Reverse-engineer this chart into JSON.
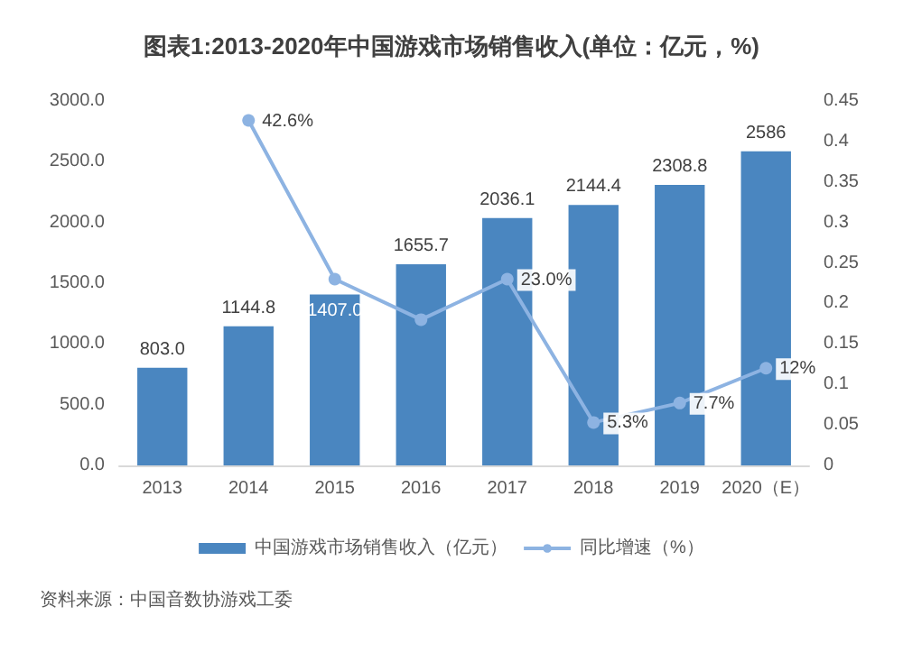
{
  "chart_data": {
    "type": "bar",
    "title": "图表1:2013-2020年中国游戏市场销售收入(单位：亿元，%)",
    "categories": [
      "2013",
      "2014",
      "2015",
      "2016",
      "2017",
      "2018",
      "2019",
      "2020（E）"
    ],
    "series": [
      {
        "name": "中国游戏市场销售收入（亿元）",
        "color": "#4a86c0",
        "values": [
          803.0,
          1144.8,
          1407.0,
          1655.7,
          2036.1,
          2144.4,
          2308.8,
          2586
        ],
        "value_labels": [
          "803.0",
          "1144.8",
          "1407.0",
          "1655.7",
          "2036.1",
          "2144.4",
          "2308.8",
          "2586"
        ]
      },
      {
        "name": "同比增速（%）",
        "type": "line",
        "axis": "y2",
        "color": "#8db3e2",
        "marker": "circle",
        "values": [
          null,
          0.426,
          0.23,
          0.18,
          0.23,
          0.053,
          0.077,
          0.12
        ],
        "value_labels": [
          null,
          "42.6%",
          null,
          null,
          "23.0%",
          "5.3%",
          "7.7%",
          "12%"
        ]
      }
    ],
    "ylim": [
      0,
      3000
    ],
    "yticks": [
      {
        "value": 0,
        "label": "0.0"
      },
      {
        "value": 500,
        "label": "500.0"
      },
      {
        "value": 1000,
        "label": "1000.0"
      },
      {
        "value": 1500,
        "label": "1500.0"
      },
      {
        "value": 2000,
        "label": "2000.0"
      },
      {
        "value": 2500,
        "label": "2500.0"
      },
      {
        "value": 3000,
        "label": "3000.0"
      }
    ],
    "y2lim": [
      0,
      0.45
    ],
    "y2ticks": [
      0,
      0.05,
      0.1,
      0.15,
      0.2,
      0.25,
      0.3,
      0.35,
      0.4,
      0.45
    ],
    "legend": "bottom",
    "grid": false,
    "annotations": [
      "资料来源：中国音数协游戏工委"
    ]
  }
}
